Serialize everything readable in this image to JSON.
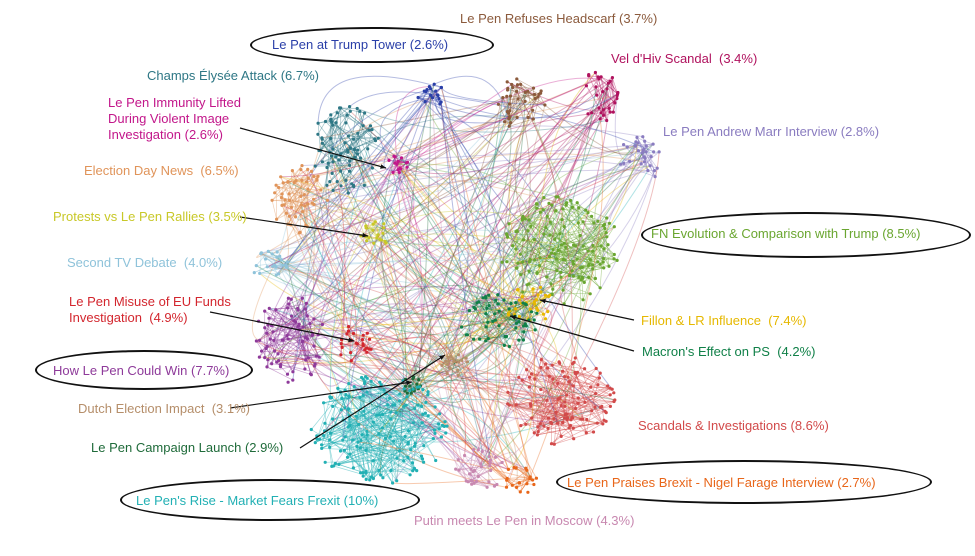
{
  "topics": [
    {
      "id": "headscarf",
      "label": "Le Pen Refuses Headscarf",
      "pct": "(3.7%)",
      "color": "#8B5A3C"
    },
    {
      "id": "trump_tower",
      "label": "Le Pen at Trump Tower",
      "pct": "(2.6%)",
      "color": "#2A3FA8"
    },
    {
      "id": "vel_dhiv",
      "label": "Vel d'Hiv Scandal",
      "pct": "(3.4%)",
      "color": "#B0125E"
    },
    {
      "id": "champs",
      "label": "Champs Élysée Attack",
      "pct": "(6.7%)",
      "color": "#2E7785"
    },
    {
      "id": "immunity",
      "label": "Le Pen Immunity Lifted During Violent Image Investigation",
      "pct": "(2.6%)",
      "color": "#C2168A"
    },
    {
      "id": "marr",
      "label": "Le Pen Andrew Marr Interview",
      "pct": "(2.8%)",
      "color": "#8A7CC0"
    },
    {
      "id": "election_day",
      "label": "Election Day News",
      "pct": "(6.5%)",
      "color": "#E0945A"
    },
    {
      "id": "protests",
      "label": "Protests vs Le Pen Rallies",
      "pct": "(3.5%)",
      "color": "#C8C828"
    },
    {
      "id": "fn_evolution",
      "label": "FN Evolution & Comparison with Trump",
      "pct": "(8.5%)",
      "color": "#6AA630"
    },
    {
      "id": "tv_debate",
      "label": "Second TV Debate",
      "pct": "(4.0%)",
      "color": "#8FC3DA"
    },
    {
      "id": "eu_funds",
      "label": "Le Pen Misuse of EU Funds Investigation",
      "pct": "(4.9%)",
      "color": "#D3262E"
    },
    {
      "id": "fillon",
      "label": "Fillon & LR Influence",
      "pct": "(7.4%)",
      "color": "#E6B800"
    },
    {
      "id": "macron",
      "label": "Macron's Effect on PS",
      "pct": "(4.2%)",
      "color": "#108048"
    },
    {
      "id": "could_win",
      "label": "How Le Pen Could Win",
      "pct": "(7.7%)",
      "color": "#8E3A9A"
    },
    {
      "id": "dutch",
      "label": "Dutch Election Impact",
      "pct": "(3.1%)",
      "color": "#B58E6A"
    },
    {
      "id": "scandals",
      "label": "Scandals & Investigations",
      "pct": "(8.6%)",
      "color": "#D24A4A"
    },
    {
      "id": "campaign",
      "label": "Le Pen Campaign Launch",
      "pct": "(2.9%)",
      "color": "#1F6B3A"
    },
    {
      "id": "brexit",
      "label": "Le Pen Praises Brexit - Nigel Farage Interview",
      "pct": "(2.7%)",
      "color": "#E8661A"
    },
    {
      "id": "rise",
      "label": "Le Pen's Rise - Market Fears Frexit",
      "pct": "(10%)",
      "color": "#22B0B4"
    },
    {
      "id": "putin",
      "label": "Putin meets Le Pen in Moscow",
      "pct": "(4.3%)",
      "color": "#C888B0"
    }
  ]
}
